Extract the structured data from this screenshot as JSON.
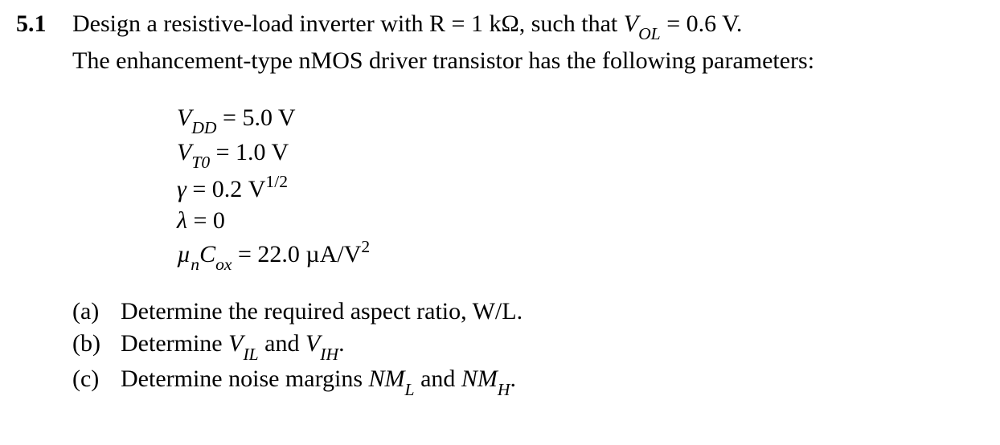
{
  "problem": {
    "number": "5.1",
    "line1_a": "Design a resistive-load inverter with R = 1 kΩ, such that ",
    "line1_var": "V",
    "line1_sub": "OL",
    "line1_b": " = 0.6 V.",
    "line2": "The enhancement-type nMOS driver transistor has the following parameters:"
  },
  "params": {
    "vdd": {
      "sym": "V",
      "sub": "DD",
      "eq": " = 5.0 V"
    },
    "vt0": {
      "sym": "V",
      "sub": "T0",
      "eq": " = 1.0 V"
    },
    "gamma": {
      "sym": "γ",
      "eq": " = 0.2 V",
      "sup": "1/2"
    },
    "lambda": {
      "sym": "λ",
      "eq": " = 0"
    },
    "muncox": {
      "sym1": "µ",
      "sub1": "n",
      "sym2": "C",
      "sub2": "ox",
      "eq": " = 22.0 µA/V",
      "sup": "2"
    }
  },
  "parts": {
    "a": {
      "label": "(a)",
      "text": "Determine the required aspect ratio, W/L."
    },
    "b": {
      "label": "(b)",
      "t1": "Determine ",
      "v1": "V",
      "s1": "IL",
      "t2": " and ",
      "v2": "V",
      "s2": "IH",
      "t3": "."
    },
    "c": {
      "label": "(c)",
      "t1": "Determine noise margins ",
      "v1": "NM",
      "s1": "L",
      "t2": " and ",
      "v2": "NM",
      "s2": "H",
      "t3": "."
    }
  }
}
